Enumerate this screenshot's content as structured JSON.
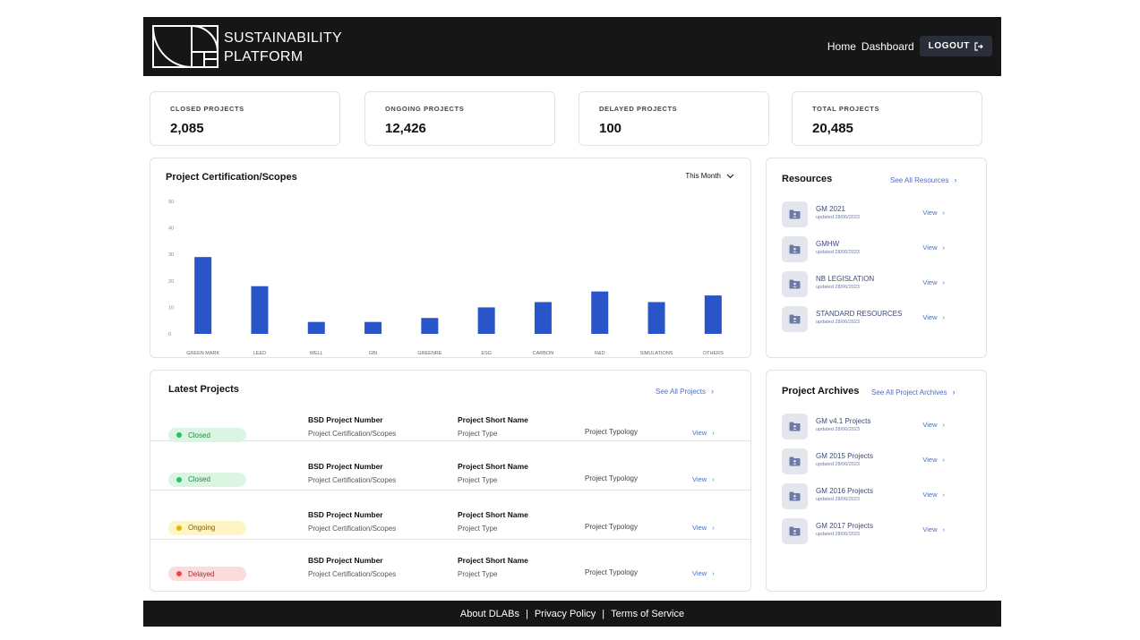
{
  "header": {
    "brand_line1": "SUSTAINABILITY",
    "brand_line2": "PLATFORM",
    "nav": [
      "Home",
      "Dashboard"
    ],
    "logout_label": "LOGOUT"
  },
  "stats": [
    {
      "label": "CLOSED PROJECTS",
      "value": "2,085"
    },
    {
      "label": "ONGOING PROJECTS",
      "value": "12,426"
    },
    {
      "label": "DELAYED PROJECTS",
      "value": "100"
    },
    {
      "label": "TOTAL PROJECTS",
      "value": "20,485"
    }
  ],
  "chart_panel": {
    "title": "Project Certification/Scopes",
    "period": "This Month"
  },
  "chart_data": {
    "type": "bar",
    "title": "Project Certification/Scopes",
    "categories": [
      "GREEN MARK",
      "LEED",
      "WELL",
      "GBI",
      "GREENRE",
      "ESG",
      "CARBON",
      "R&D",
      "SIMULATIONS",
      "OTHERS"
    ],
    "values": [
      29,
      18,
      4.5,
      4.5,
      6,
      10,
      12,
      16,
      12,
      14.5
    ],
    "yticks": [
      0,
      10,
      20,
      30,
      40,
      50
    ],
    "ylim": [
      0,
      50
    ],
    "grid": false,
    "color": "#2a55c9"
  },
  "resources": {
    "title": "Resources",
    "see_all": "See All Resources",
    "items": [
      {
        "name": "GM 2021",
        "date": "updated 28/06/2023",
        "action": "View"
      },
      {
        "name": "GMHW",
        "date": "updated 28/06/2023",
        "action": "View"
      },
      {
        "name": "NB LEGISLATION",
        "date": "updated 28/06/2023",
        "action": "View"
      },
      {
        "name": "STANDARD RESOURCES",
        "date": "updated 28/06/2023",
        "action": "View"
      }
    ]
  },
  "latest": {
    "title": "Latest Projects",
    "see_all": "See All Projects",
    "rows": [
      {
        "status": "Closed",
        "number": "BSD Project Number",
        "scope": "Project Certification/Scopes",
        "name": "Project Short Name",
        "type": "Project Type",
        "typology": "Project Typology",
        "action": "View"
      },
      {
        "status": "Closed",
        "number": "BSD Project Number",
        "scope": "Project Certification/Scopes",
        "name": "Project Short Name",
        "type": "Project Type",
        "typology": "Project Typology",
        "action": "View"
      },
      {
        "status": "Ongoing",
        "number": "BSD Project Number",
        "scope": "Project Certification/Scopes",
        "name": "Project Short Name",
        "type": "Project Type",
        "typology": "Project Typology",
        "action": "View"
      },
      {
        "status": "Delayed",
        "number": "BSD Project Number",
        "scope": "Project Certification/Scopes",
        "name": "Project Short Name",
        "type": "Project Type",
        "typology": "Project Typology",
        "action": "View"
      }
    ]
  },
  "archives": {
    "title": "Project Archives",
    "see_all": "See All Project Archives",
    "items": [
      {
        "name": "GM v4.1 Projects",
        "date": "updated 28/06/2023",
        "action": "View"
      },
      {
        "name": "GM 2015 Projects",
        "date": "updated 28/06/2023",
        "action": "View"
      },
      {
        "name": "GM 2016 Projects",
        "date": "updated 28/06/2023",
        "action": "View"
      },
      {
        "name": "GM 2017 Projects",
        "date": "updated 28/06/2023",
        "action": "View"
      }
    ]
  },
  "footer": {
    "links": [
      "About DLABs",
      "Privacy Policy",
      "Terms of Service"
    ],
    "separator": "|"
  }
}
